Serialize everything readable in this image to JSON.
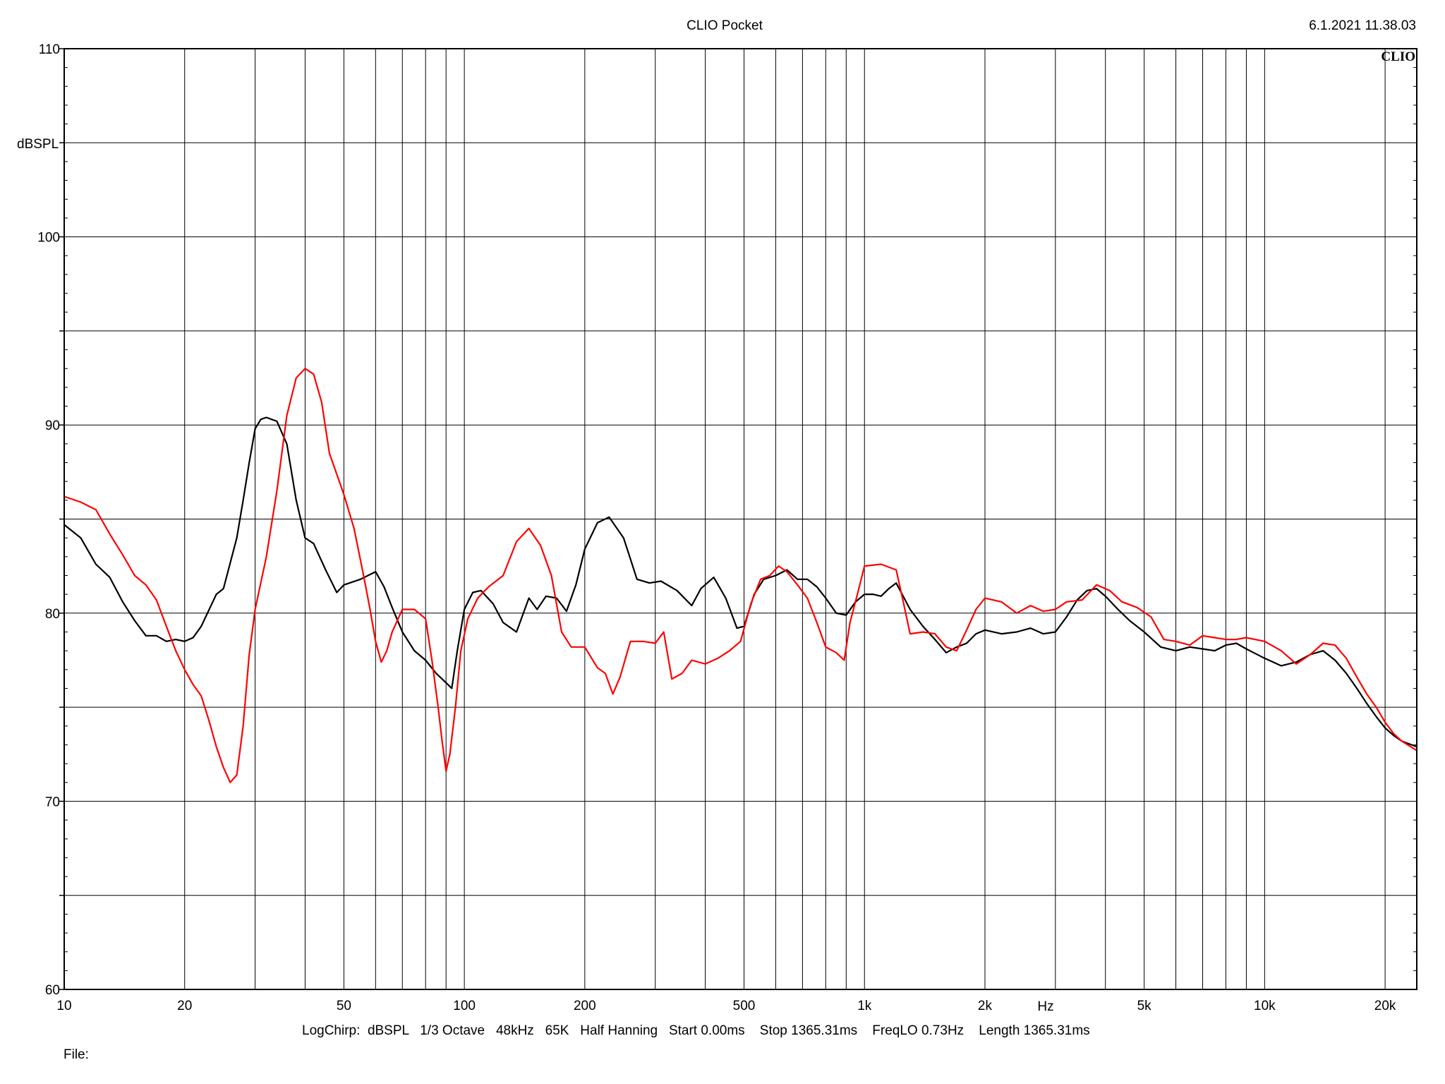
{
  "header": {
    "title": "CLIO Pocket",
    "timestamp": "6.1.2021 11.38.03",
    "brand": "CLIO"
  },
  "footer": {
    "settings": "LogChirp:  dBSPL   1/3 Octave   48kHz   65K   Half Hanning   Start 0.00ms    Stop 1365.31ms    FreqLO 0.73Hz    Length 1365.31ms",
    "file_label": "File:"
  },
  "chart_data": {
    "type": "line",
    "title": "CLIO Pocket",
    "xlabel": "Hz",
    "ylabel": "dBSPL",
    "xscale": "log",
    "xlim": [
      10,
      24000
    ],
    "ylim": [
      60,
      110
    ],
    "grid": true,
    "x_tick_labels": [
      {
        "value": 10,
        "label": "10"
      },
      {
        "value": 20,
        "label": "20"
      },
      {
        "value": 50,
        "label": "50"
      },
      {
        "value": 100,
        "label": "100"
      },
      {
        "value": 200,
        "label": "200"
      },
      {
        "value": 500,
        "label": "500"
      },
      {
        "value": 1000,
        "label": "1k"
      },
      {
        "value": 2000,
        "label": "2k"
      },
      {
        "value": 5000,
        "label": "5k"
      },
      {
        "value": 10000,
        "label": "10k"
      },
      {
        "value": 20000,
        "label": "20k"
      }
    ],
    "y_tick_labels": [
      {
        "value": 110,
        "label": "110"
      },
      {
        "value": 100,
        "label": "100"
      },
      {
        "value": 90,
        "label": "90"
      },
      {
        "value": 80,
        "label": "80"
      },
      {
        "value": 70,
        "label": "70"
      },
      {
        "value": 60,
        "label": "60"
      }
    ],
    "series": [
      {
        "color": "#000000",
        "points": [
          [
            10,
            84.7
          ],
          [
            11,
            84.0
          ],
          [
            12,
            82.6
          ],
          [
            13,
            81.9
          ],
          [
            14,
            80.6
          ],
          [
            15,
            79.6
          ],
          [
            16,
            78.8
          ],
          [
            17,
            78.8
          ],
          [
            18,
            78.5
          ],
          [
            19,
            78.6
          ],
          [
            20,
            78.5
          ],
          [
            21,
            78.7
          ],
          [
            22,
            79.3
          ],
          [
            24,
            81.0
          ],
          [
            25,
            81.3
          ],
          [
            27,
            84.0
          ],
          [
            28,
            86.0
          ],
          [
            29,
            88.0
          ],
          [
            30,
            89.8
          ],
          [
            31,
            90.3
          ],
          [
            32,
            90.4
          ],
          [
            34,
            90.2
          ],
          [
            36,
            89.0
          ],
          [
            38,
            86.0
          ],
          [
            40,
            84.0
          ],
          [
            42,
            83.7
          ],
          [
            45,
            82.3
          ],
          [
            48,
            81.1
          ],
          [
            50,
            81.5
          ],
          [
            55,
            81.8
          ],
          [
            60,
            82.2
          ],
          [
            63,
            81.4
          ],
          [
            66,
            80.3
          ],
          [
            70,
            79.0
          ],
          [
            75,
            78.0
          ],
          [
            80,
            77.5
          ],
          [
            85,
            76.8
          ],
          [
            90,
            76.3
          ],
          [
            93,
            76.0
          ],
          [
            96,
            78.0
          ],
          [
            100,
            80.2
          ],
          [
            105,
            81.1
          ],
          [
            110,
            81.2
          ],
          [
            118,
            80.5
          ],
          [
            125,
            79.5
          ],
          [
            135,
            79.0
          ],
          [
            145,
            80.8
          ],
          [
            152,
            80.2
          ],
          [
            160,
            80.9
          ],
          [
            170,
            80.8
          ],
          [
            180,
            80.1
          ],
          [
            190,
            81.5
          ],
          [
            200,
            83.4
          ],
          [
            215,
            84.8
          ],
          [
            230,
            85.1
          ],
          [
            250,
            84.0
          ],
          [
            270,
            81.8
          ],
          [
            290,
            81.6
          ],
          [
            310,
            81.7
          ],
          [
            340,
            81.2
          ],
          [
            370,
            80.4
          ],
          [
            390,
            81.3
          ],
          [
            420,
            81.9
          ],
          [
            450,
            80.8
          ],
          [
            480,
            79.2
          ],
          [
            500,
            79.3
          ],
          [
            530,
            81.0
          ],
          [
            560,
            81.8
          ],
          [
            600,
            82.0
          ],
          [
            640,
            82.3
          ],
          [
            680,
            81.8
          ],
          [
            720,
            81.8
          ],
          [
            760,
            81.4
          ],
          [
            800,
            80.8
          ],
          [
            850,
            80.0
          ],
          [
            900,
            79.9
          ],
          [
            950,
            80.6
          ],
          [
            1000,
            81.0
          ],
          [
            1050,
            81.0
          ],
          [
            1100,
            80.9
          ],
          [
            1150,
            81.3
          ],
          [
            1200,
            81.6
          ],
          [
            1300,
            80.2
          ],
          [
            1400,
            79.3
          ],
          [
            1500,
            78.6
          ],
          [
            1600,
            77.9
          ],
          [
            1700,
            78.2
          ],
          [
            1800,
            78.4
          ],
          [
            1900,
            78.9
          ],
          [
            2000,
            79.1
          ],
          [
            2200,
            78.9
          ],
          [
            2400,
            79.0
          ],
          [
            2600,
            79.2
          ],
          [
            2800,
            78.9
          ],
          [
            3000,
            79.0
          ],
          [
            3200,
            79.8
          ],
          [
            3400,
            80.7
          ],
          [
            3600,
            81.2
          ],
          [
            3800,
            81.3
          ],
          [
            4000,
            80.9
          ],
          [
            4300,
            80.2
          ],
          [
            4600,
            79.6
          ],
          [
            5000,
            79.0
          ],
          [
            5500,
            78.2
          ],
          [
            6000,
            78.0
          ],
          [
            6500,
            78.2
          ],
          [
            7000,
            78.1
          ],
          [
            7500,
            78.0
          ],
          [
            8000,
            78.3
          ],
          [
            8500,
            78.4
          ],
          [
            9000,
            78.1
          ],
          [
            10000,
            77.6
          ],
          [
            11000,
            77.2
          ],
          [
            12000,
            77.4
          ],
          [
            13000,
            77.8
          ],
          [
            14000,
            78.0
          ],
          [
            15000,
            77.5
          ],
          [
            16000,
            76.8
          ],
          [
            17000,
            76.0
          ],
          [
            18000,
            75.2
          ],
          [
            19000,
            74.5
          ],
          [
            20000,
            73.9
          ],
          [
            21000,
            73.5
          ],
          [
            22000,
            73.2
          ],
          [
            24000,
            72.9
          ]
        ]
      },
      {
        "color": "#ff0000",
        "points": [
          [
            10,
            86.2
          ],
          [
            11,
            85.9
          ],
          [
            12,
            85.5
          ],
          [
            13,
            84.2
          ],
          [
            14,
            83.1
          ],
          [
            15,
            82.0
          ],
          [
            16,
            81.5
          ],
          [
            17,
            80.7
          ],
          [
            18,
            79.3
          ],
          [
            19,
            78.0
          ],
          [
            20,
            77.0
          ],
          [
            21,
            76.2
          ],
          [
            22,
            75.6
          ],
          [
            23,
            74.3
          ],
          [
            24,
            72.9
          ],
          [
            25,
            71.8
          ],
          [
            26,
            71.0
          ],
          [
            27,
            71.4
          ],
          [
            28,
            74.0
          ],
          [
            29,
            77.8
          ],
          [
            30,
            80.2
          ],
          [
            32,
            83.0
          ],
          [
            34,
            86.5
          ],
          [
            36,
            90.5
          ],
          [
            38,
            92.5
          ],
          [
            40,
            93.0
          ],
          [
            42,
            92.7
          ],
          [
            44,
            91.2
          ],
          [
            46,
            88.5
          ],
          [
            50,
            86.3
          ],
          [
            53,
            84.5
          ],
          [
            56,
            82.0
          ],
          [
            58,
            80.3
          ],
          [
            60,
            78.5
          ],
          [
            62,
            77.4
          ],
          [
            64,
            78.0
          ],
          [
            66,
            79.0
          ],
          [
            70,
            80.2
          ],
          [
            75,
            80.2
          ],
          [
            80,
            79.7
          ],
          [
            83,
            77.5
          ],
          [
            86,
            75.0
          ],
          [
            88,
            73.2
          ],
          [
            90,
            71.6
          ],
          [
            92,
            72.5
          ],
          [
            95,
            75.0
          ],
          [
            98,
            78.0
          ],
          [
            102,
            79.7
          ],
          [
            108,
            80.8
          ],
          [
            115,
            81.4
          ],
          [
            125,
            82.0
          ],
          [
            135,
            83.8
          ],
          [
            145,
            84.5
          ],
          [
            155,
            83.6
          ],
          [
            165,
            82.0
          ],
          [
            175,
            79.0
          ],
          [
            185,
            78.2
          ],
          [
            200,
            78.2
          ],
          [
            215,
            77.1
          ],
          [
            225,
            76.8
          ],
          [
            235,
            75.7
          ],
          [
            245,
            76.6
          ],
          [
            260,
            78.5
          ],
          [
            280,
            78.5
          ],
          [
            300,
            78.4
          ],
          [
            315,
            79.0
          ],
          [
            330,
            76.5
          ],
          [
            350,
            76.8
          ],
          [
            370,
            77.5
          ],
          [
            400,
            77.3
          ],
          [
            430,
            77.6
          ],
          [
            460,
            78.0
          ],
          [
            490,
            78.5
          ],
          [
            520,
            80.5
          ],
          [
            550,
            81.8
          ],
          [
            580,
            82.0
          ],
          [
            610,
            82.5
          ],
          [
            640,
            82.2
          ],
          [
            680,
            81.5
          ],
          [
            720,
            80.8
          ],
          [
            760,
            79.5
          ],
          [
            800,
            78.2
          ],
          [
            850,
            77.9
          ],
          [
            890,
            77.5
          ],
          [
            920,
            79.5
          ],
          [
            960,
            81.0
          ],
          [
            1000,
            82.5
          ],
          [
            1100,
            82.6
          ],
          [
            1200,
            82.3
          ],
          [
            1250,
            80.6
          ],
          [
            1300,
            78.9
          ],
          [
            1400,
            79.0
          ],
          [
            1500,
            78.9
          ],
          [
            1600,
            78.2
          ],
          [
            1700,
            78.0
          ],
          [
            1800,
            79.1
          ],
          [
            1900,
            80.2
          ],
          [
            2000,
            80.8
          ],
          [
            2200,
            80.6
          ],
          [
            2400,
            80.0
          ],
          [
            2600,
            80.4
          ],
          [
            2800,
            80.1
          ],
          [
            3000,
            80.2
          ],
          [
            3200,
            80.6
          ],
          [
            3500,
            80.7
          ],
          [
            3800,
            81.5
          ],
          [
            4100,
            81.2
          ],
          [
            4400,
            80.6
          ],
          [
            4800,
            80.3
          ],
          [
            5200,
            79.8
          ],
          [
            5600,
            78.6
          ],
          [
            6000,
            78.5
          ],
          [
            6500,
            78.3
          ],
          [
            7000,
            78.8
          ],
          [
            7500,
            78.7
          ],
          [
            8000,
            78.6
          ],
          [
            8500,
            78.6
          ],
          [
            9000,
            78.7
          ],
          [
            10000,
            78.5
          ],
          [
            11000,
            78.0
          ],
          [
            12000,
            77.3
          ],
          [
            13000,
            77.8
          ],
          [
            14000,
            78.4
          ],
          [
            15000,
            78.3
          ],
          [
            16000,
            77.6
          ],
          [
            17000,
            76.6
          ],
          [
            18000,
            75.7
          ],
          [
            19000,
            75.0
          ],
          [
            20000,
            74.2
          ],
          [
            21000,
            73.6
          ],
          [
            22000,
            73.2
          ],
          [
            24000,
            72.7
          ]
        ]
      }
    ]
  }
}
